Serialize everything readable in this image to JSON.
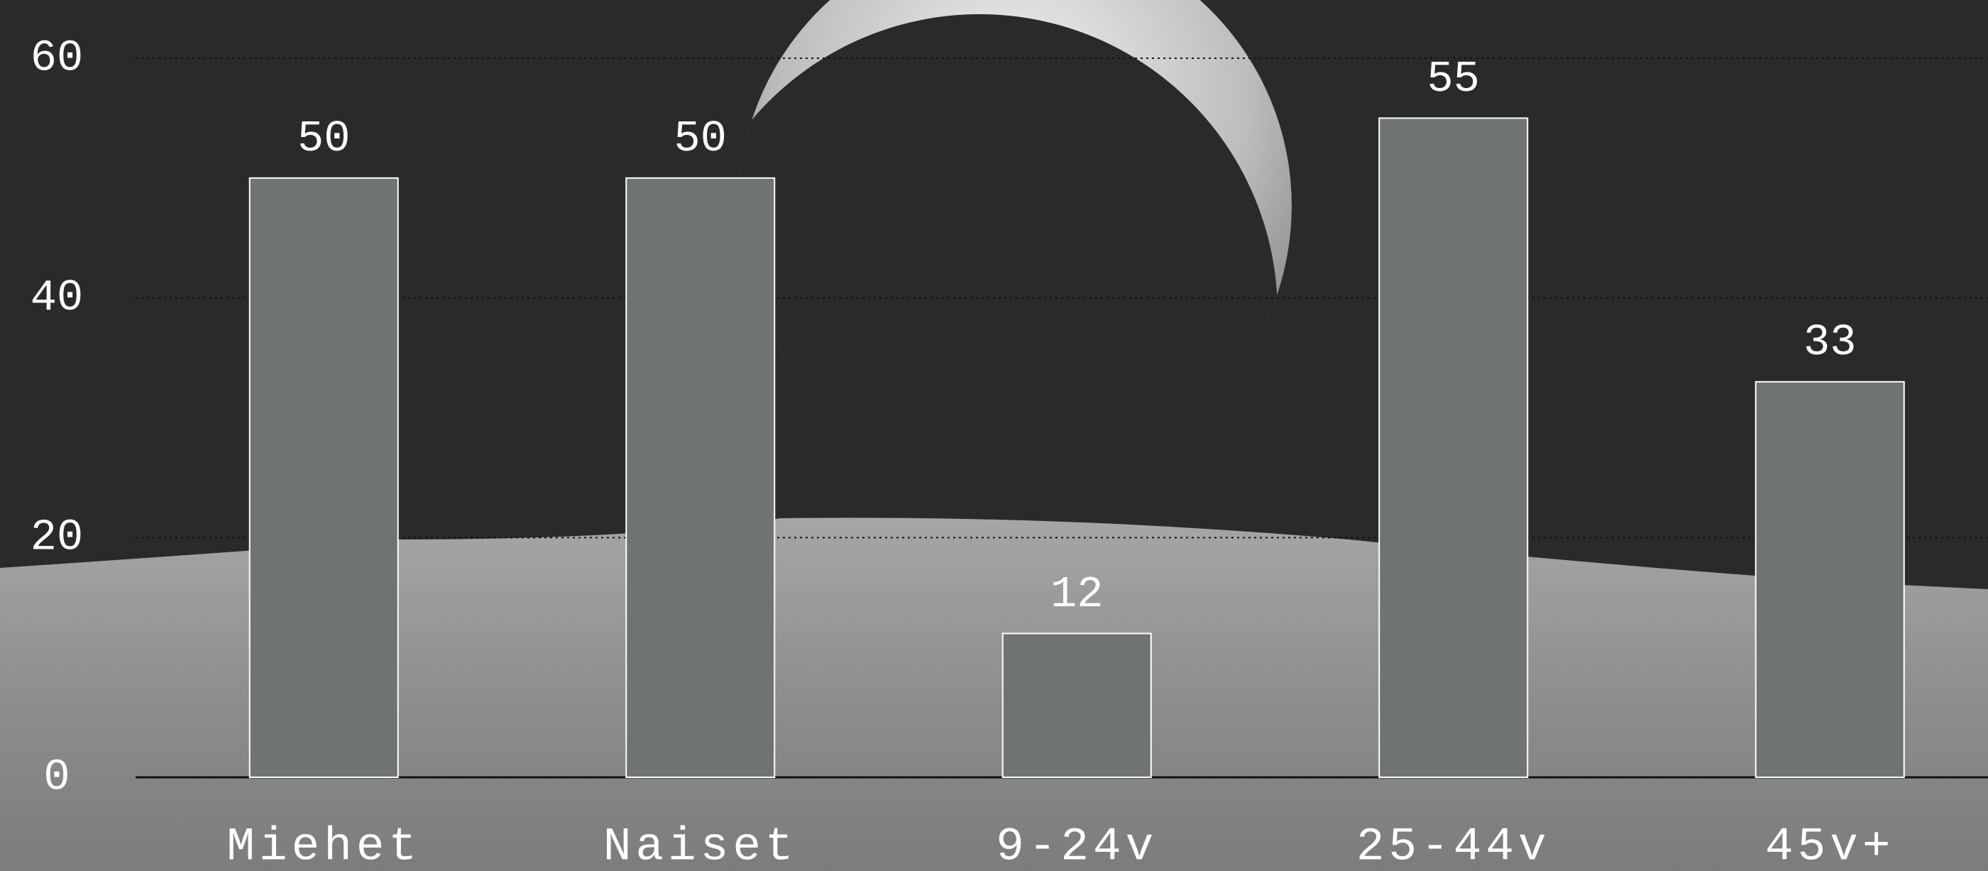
{
  "chart_data": {
    "type": "bar",
    "categories": [
      "Miehet",
      "Naiset",
      "9-24v",
      "25-44v",
      "45v+"
    ],
    "values": [
      50,
      50,
      12,
      55,
      33
    ],
    "color": "#6e7570",
    "ylim": [
      0,
      60
    ],
    "yticks": [
      0,
      20,
      40,
      60
    ],
    "grid": true
  }
}
